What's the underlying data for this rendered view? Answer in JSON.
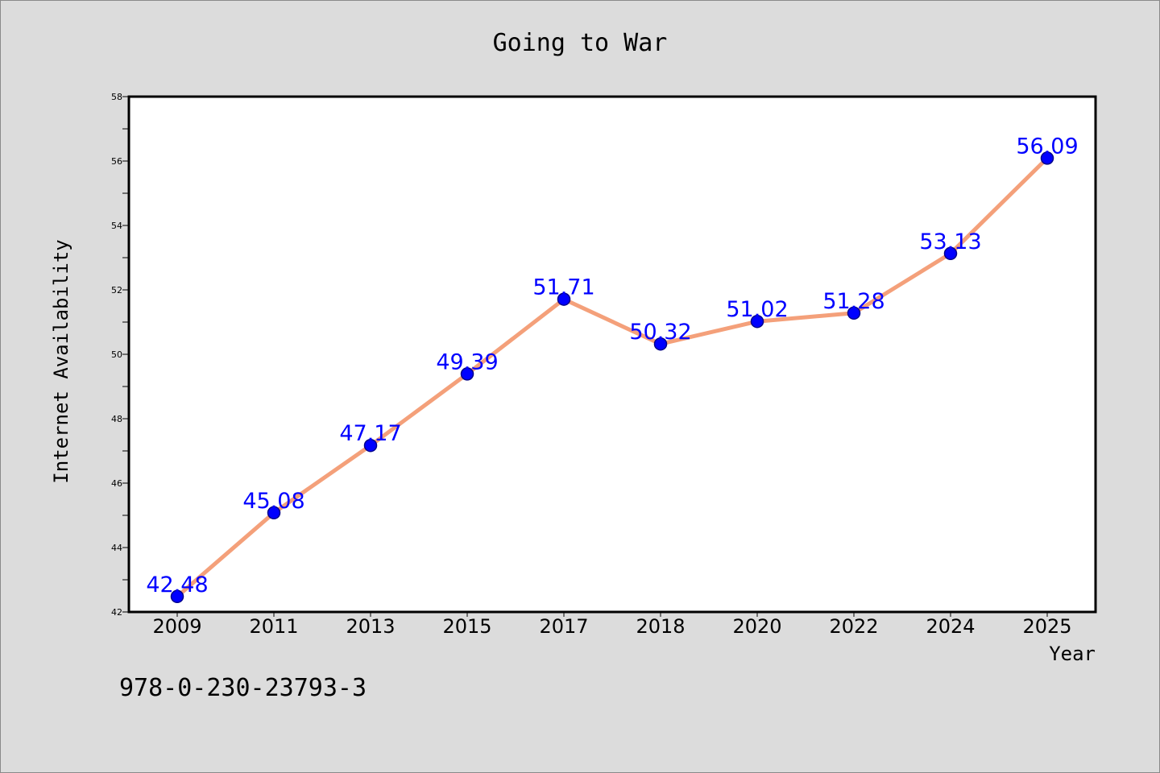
{
  "chart_data": {
    "type": "line",
    "title": "Going to War",
    "xlabel": "Year",
    "ylabel": "Internet Availability",
    "categories": [
      "2009",
      "2011",
      "2013",
      "2015",
      "2017",
      "2018",
      "2020",
      "2022",
      "2024",
      "2025"
    ],
    "series": [
      {
        "values": [
          42.48,
          45.08,
          47.17,
          49.39,
          51.71,
          50.32,
          51.02,
          51.28,
          53.13,
          56.09
        ],
        "data_labels": [
          "42.48",
          "45.08",
          "47.17",
          "49.39",
          "51.71",
          "50.32",
          "51.02",
          "51.28",
          "53.13",
          "56.09"
        ],
        "line_color": "#f4a07a",
        "marker_color": "#0000ff"
      }
    ],
    "ylim": [
      42,
      58
    ],
    "yticks": [
      "42",
      "44",
      "46",
      "48",
      "50",
      "52",
      "54",
      "56",
      "58"
    ],
    "grid": false,
    "legend": "none",
    "label_color": "#0000ff"
  },
  "footer": {
    "isbn": "978-0-230-23793-3"
  }
}
